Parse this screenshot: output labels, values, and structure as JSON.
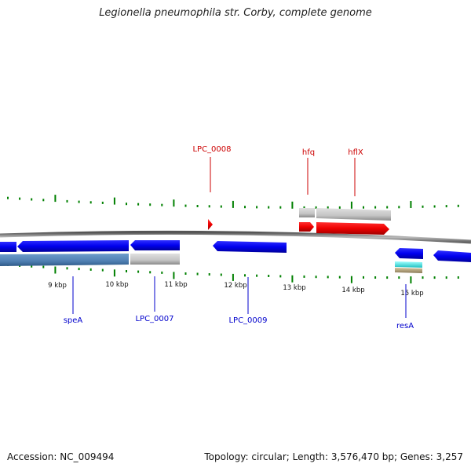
{
  "title": "Legionella pneumophila str. Corby, complete genome",
  "footer": {
    "accession": "Accession: NC_009494",
    "summary": "Topology: circular; Length: 3,576,470 bp; Genes: 3,257"
  },
  "colors": {
    "forward_gene": "#ff0000",
    "reverse_gene": "#0000ff",
    "reverse_cds_light": "#5f8fc0",
    "other_feature": "#c0c0c0",
    "backbone": "#888888",
    "ticks": "#008000",
    "forward_label": "#cc0000",
    "reverse_label": "#0000cc"
  },
  "scale": {
    "unit": "kbp",
    "labels": [
      "9 kbp",
      "10 kbp",
      "11 kbp",
      "12 kbp",
      "13 kbp",
      "14 kbp",
      "15 kbp"
    ]
  },
  "genes": [
    {
      "name": "speA",
      "strand": "reverse"
    },
    {
      "name": "LPC_0007",
      "strand": "reverse"
    },
    {
      "name": "LPC_0008",
      "strand": "forward"
    },
    {
      "name": "LPC_0009",
      "strand": "reverse"
    },
    {
      "name": "hfq",
      "strand": "forward"
    },
    {
      "name": "hflX",
      "strand": "forward"
    },
    {
      "name": "resA",
      "strand": "reverse"
    }
  ]
}
